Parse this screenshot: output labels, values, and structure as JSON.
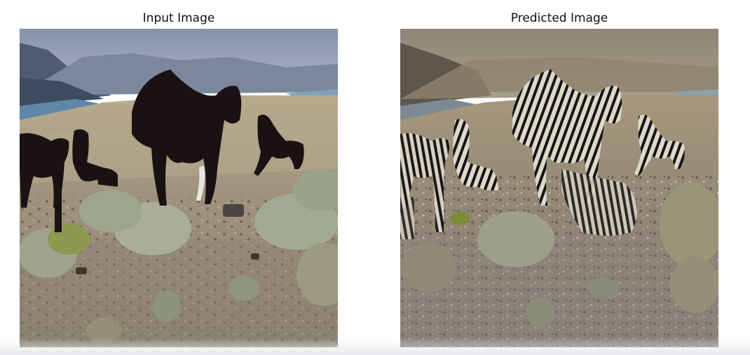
{
  "panels": [
    {
      "title": "Input Image",
      "image": "horses-on-desert-hillside"
    },
    {
      "title": "Predicted Image",
      "image": "horses-translated-to-zebra-stripes"
    }
  ],
  "colors": {
    "sky": "#8d9ab3",
    "mountains": "#57657a",
    "river": "#5f86a6",
    "ground": "#9a8f7d",
    "shrub": "#a6ad98",
    "horse": "#1b1313",
    "zebra_light": "#d8d4c6"
  }
}
